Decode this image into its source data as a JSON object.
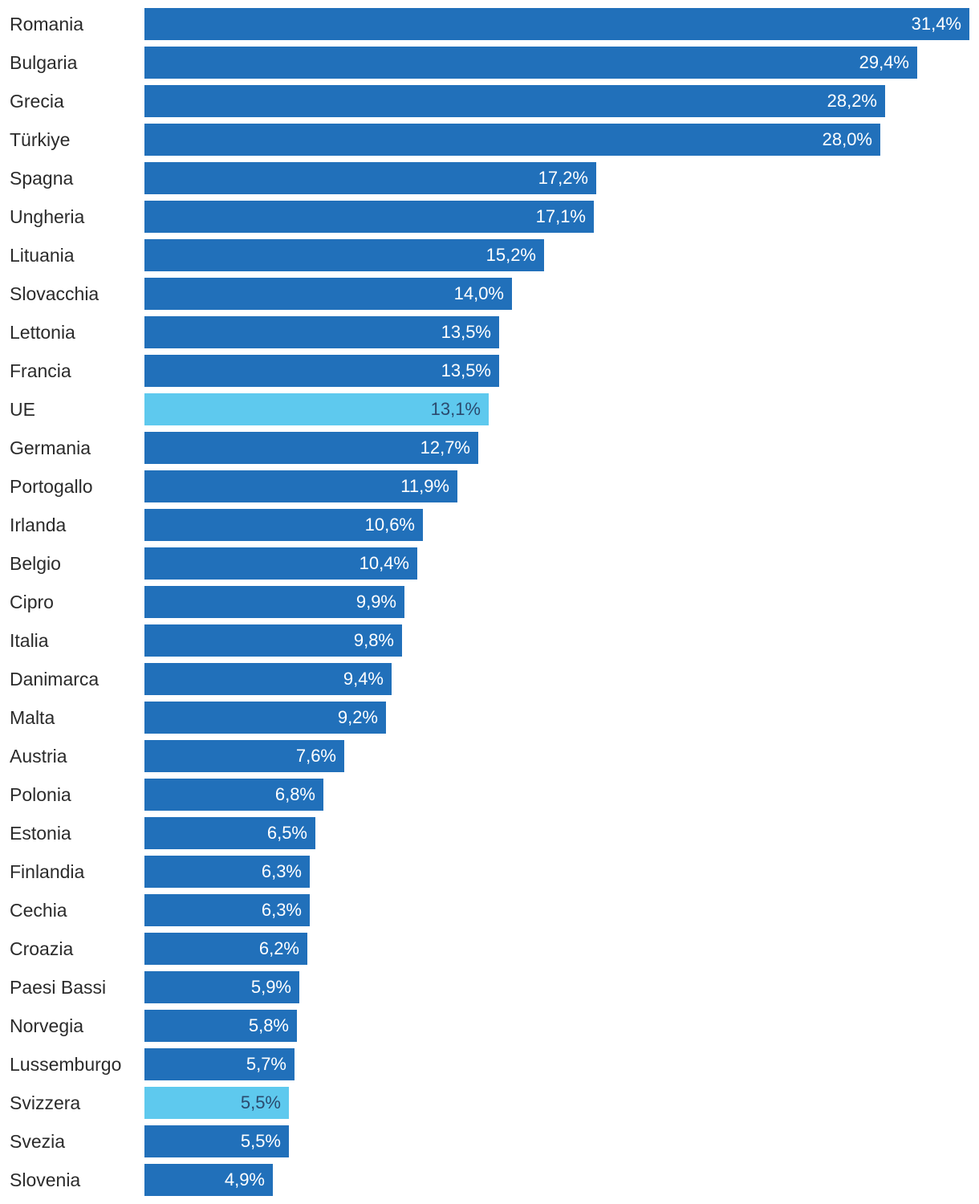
{
  "chart_data": {
    "type": "bar",
    "orientation": "horizontal",
    "value_suffix": "%",
    "decimal_separator": ",",
    "colors": {
      "default": "#2170ba",
      "highlight": "#5ec9ee",
      "label_on_default": "#ffffff",
      "label_on_highlight": "#2b4a6e"
    },
    "xlim": [
      0,
      31.4
    ],
    "grid": false,
    "legend": "none",
    "categories": [
      "Romania",
      "Bulgaria",
      "Grecia",
      "Türkiye",
      "Spagna",
      "Ungheria",
      "Lituania",
      "Slovacchia",
      "Lettonia",
      "Francia",
      "UE",
      "Germania",
      "Portogallo",
      "Irlanda",
      "Belgio",
      "Cipro",
      "Italia",
      "Danimarca",
      "Malta",
      "Austria",
      "Polonia",
      "Estonia",
      "Finlandia",
      "Cechia",
      "Croazia",
      "Paesi Bassi",
      "Norvegia",
      "Lussemburgo",
      "Svizzera",
      "Svezia",
      "Slovenia"
    ],
    "values": [
      31.4,
      29.4,
      28.2,
      28.0,
      17.2,
      17.1,
      15.2,
      14.0,
      13.5,
      13.5,
      13.1,
      12.7,
      11.9,
      10.6,
      10.4,
      9.9,
      9.8,
      9.4,
      9.2,
      7.6,
      6.8,
      6.5,
      6.3,
      6.3,
      6.2,
      5.9,
      5.8,
      5.7,
      5.5,
      5.5,
      4.9
    ],
    "value_labels": [
      "31,4%",
      "29,4%",
      "28,2%",
      "28,0%",
      "17,2%",
      "17,1%",
      "15,2%",
      "14,0%",
      "13,5%",
      "13,5%",
      "13,1%",
      "12,7%",
      "11,9%",
      "10,6%",
      "10,4%",
      "9,9%",
      "9,8%",
      "9,4%",
      "9,2%",
      "7,6%",
      "6,8%",
      "6,5%",
      "6,3%",
      "6,3%",
      "6,2%",
      "5,9%",
      "5,8%",
      "5,7%",
      "5,5%",
      "5,5%",
      "4,9%"
    ],
    "highlighted": [
      "UE",
      "Svizzera"
    ]
  }
}
